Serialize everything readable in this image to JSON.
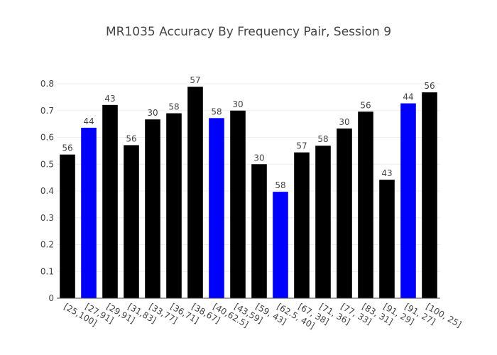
{
  "chart_data": {
    "type": "bar",
    "title": "MR1035 Accuracy By Frequency Pair, Session 9",
    "xlabel": "",
    "ylabel": "",
    "ylim": [
      0,
      0.8
    ],
    "yticks": [
      "0",
      "0.1",
      "0.2",
      "0.3",
      "0.4",
      "0.5",
      "0.6",
      "0.7",
      "0.8"
    ],
    "grid": true,
    "categories": [
      "[25,100]",
      "[27,91]",
      "[29,91]",
      "[31,83]",
      "[33,77]",
      "[36,71]",
      "[38,67]",
      "[40,62.5]",
      "[43,59]",
      "[59, 43]",
      "[62.5, 40]",
      "[67, 38]",
      "[71, 36]",
      "[77, 33]",
      "[83, 31]",
      "[91, 29]",
      "[91, 27]",
      "[100, 25]"
    ],
    "values": [
      0.536,
      0.636,
      0.721,
      0.571,
      0.667,
      0.69,
      0.789,
      0.672,
      0.7,
      0.5,
      0.397,
      0.544,
      0.569,
      0.633,
      0.696,
      0.442,
      0.727,
      0.768
    ],
    "labels": [
      "56",
      "44",
      "43",
      "56",
      "30",
      "58",
      "57",
      "58",
      "30",
      "30",
      "58",
      "57",
      "58",
      "30",
      "56",
      "43",
      "44",
      "56"
    ],
    "colors": [
      "#000000",
      "#0000ff",
      "#000000",
      "#000000",
      "#000000",
      "#000000",
      "#000000",
      "#0000ff",
      "#000000",
      "#000000",
      "#0000ff",
      "#000000",
      "#000000",
      "#000000",
      "#000000",
      "#000000",
      "#0000ff",
      "#000000"
    ]
  }
}
